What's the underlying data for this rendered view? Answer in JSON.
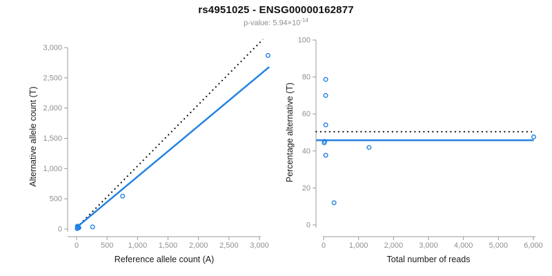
{
  "header": {
    "title": "rs4951025 - ENSG00000162877",
    "subtitle_prefix": "p-value: 5.94×10",
    "subtitle_exponent": "-14"
  },
  "colors": {
    "accent_blue": "#2282E2",
    "reference_black": "#111111",
    "axis_gray": "#999999",
    "tick_label_gray": "#8e8e8e",
    "title_black": "#111111"
  },
  "chart_data": [
    {
      "type": "scatter",
      "name": "allele-count-scatter",
      "xlabel": "Reference allele count (A)",
      "ylabel": "Alternative allele count (T)",
      "xlim": [
        0,
        3180
      ],
      "ylim": [
        0,
        3160
      ],
      "grid": false,
      "legend": null,
      "xticks": {
        "values": [
          0,
          500,
          1000,
          1500,
          2000,
          2500,
          3000
        ],
        "labels": [
          "0",
          "500",
          "1,000",
          "1,500",
          "2,000",
          "2,500",
          "3,000"
        ]
      },
      "yticks": {
        "values": [
          0,
          500,
          1000,
          1500,
          2000,
          2500,
          3000
        ],
        "labels": [
          "0",
          "500",
          "1,000",
          "1,500",
          "2,000",
          "2,500",
          "3,000"
        ]
      },
      "points": [
        [
          10,
          8
        ],
        [
          13,
          48
        ],
        [
          17,
          14
        ],
        [
          18,
          42
        ],
        [
          28,
          33
        ],
        [
          38,
          23
        ],
        [
          263,
          36
        ],
        [
          755,
          545
        ],
        [
          3140,
          2870
        ]
      ],
      "lines": [
        {
          "name": "identity-line",
          "style": "dotted",
          "color": "#111111",
          "x": [
            0,
            3057
          ],
          "y": [
            23,
            3136
          ]
        },
        {
          "name": "fit-line",
          "style": "solid",
          "color": "#2282E2",
          "x": [
            0,
            3160
          ],
          "y": [
            28,
            2680
          ]
        }
      ]
    },
    {
      "type": "scatter",
      "name": "percentage-alternative-scatter",
      "xlabel": "Total number of reads",
      "ylabel": "Percentage alternative (T)",
      "xlim": [
        -240,
        6100
      ],
      "ylim": [
        0,
        100
      ],
      "grid": false,
      "legend": null,
      "xticks": {
        "values": [
          0,
          1000,
          2000,
          3000,
          4000,
          5000,
          6000
        ],
        "labels": [
          "0",
          "1,000",
          "2,000",
          "3,000",
          "4,000",
          "5,000",
          "6,000"
        ]
      },
      "yticks": {
        "values": [
          0,
          20,
          40,
          60,
          80,
          100
        ],
        "labels": [
          "0",
          "20",
          "40",
          "60",
          "80",
          "100"
        ]
      },
      "points": [
        [
          18,
          44.4
        ],
        [
          31,
          45.2
        ],
        [
          60,
          70
        ],
        [
          61,
          78.7
        ],
        [
          61,
          54.1
        ],
        [
          61,
          37.7
        ],
        [
          299,
          12
        ],
        [
          1300,
          41.9
        ],
        [
          6010,
          47.6
        ]
      ],
      "lines": [
        {
          "name": "expected-percentage-line",
          "style": "dotted",
          "color": "#111111",
          "x": [
            -230,
            5960
          ],
          "y": [
            50.4,
            50.4
          ]
        },
        {
          "name": "mean-percentage-line",
          "style": "solid",
          "color": "#2282E2",
          "x": [
            -210,
            6010
          ],
          "y": [
            45.8,
            45.8
          ]
        }
      ]
    }
  ]
}
